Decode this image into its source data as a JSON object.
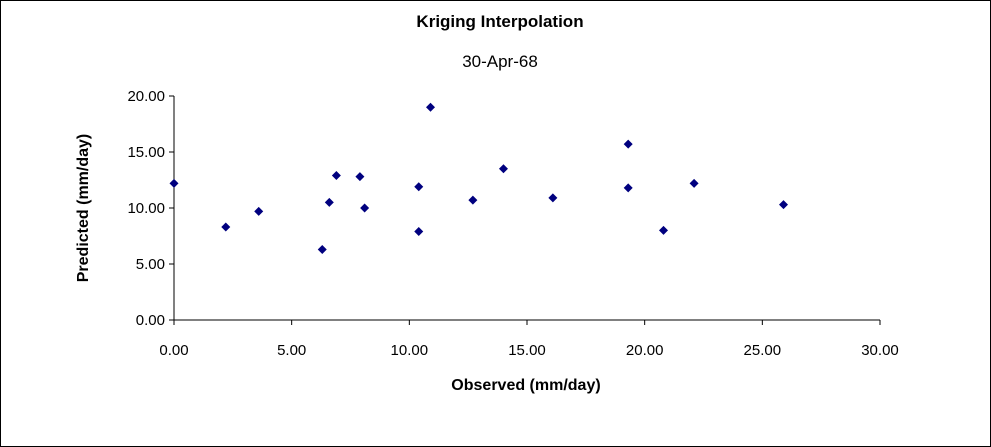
{
  "chart_data": {
    "type": "scatter",
    "title": "Kriging Interpolation",
    "subtitle": "30-Apr-68",
    "xlabel": "Observed (mm/day)",
    "ylabel": "Predicted (mm/day)",
    "xlim": [
      0,
      30
    ],
    "ylim": [
      0,
      20
    ],
    "x_ticks": [
      "0.00",
      "5.00",
      "10.00",
      "15.00",
      "20.00",
      "25.00",
      "30.00"
    ],
    "y_ticks": [
      "0.00",
      "5.00",
      "10.00",
      "15.00",
      "20.00"
    ],
    "grid": false,
    "legend": "none",
    "marker_color": "#00007F",
    "points": [
      {
        "x": 0.0,
        "y": 12.2
      },
      {
        "x": 2.2,
        "y": 8.3
      },
      {
        "x": 3.6,
        "y": 9.7
      },
      {
        "x": 6.3,
        "y": 6.3
      },
      {
        "x": 6.6,
        "y": 10.5
      },
      {
        "x": 6.9,
        "y": 12.9
      },
      {
        "x": 7.9,
        "y": 12.8
      },
      {
        "x": 8.1,
        "y": 10.0
      },
      {
        "x": 10.4,
        "y": 11.9
      },
      {
        "x": 10.4,
        "y": 7.9
      },
      {
        "x": 10.9,
        "y": 19.0
      },
      {
        "x": 12.7,
        "y": 10.7
      },
      {
        "x": 14.0,
        "y": 13.5
      },
      {
        "x": 16.1,
        "y": 10.9
      },
      {
        "x": 19.3,
        "y": 15.7
      },
      {
        "x": 19.3,
        "y": 11.8
      },
      {
        "x": 20.8,
        "y": 8.0
      },
      {
        "x": 22.1,
        "y": 12.2
      },
      {
        "x": 25.9,
        "y": 10.3
      }
    ]
  }
}
